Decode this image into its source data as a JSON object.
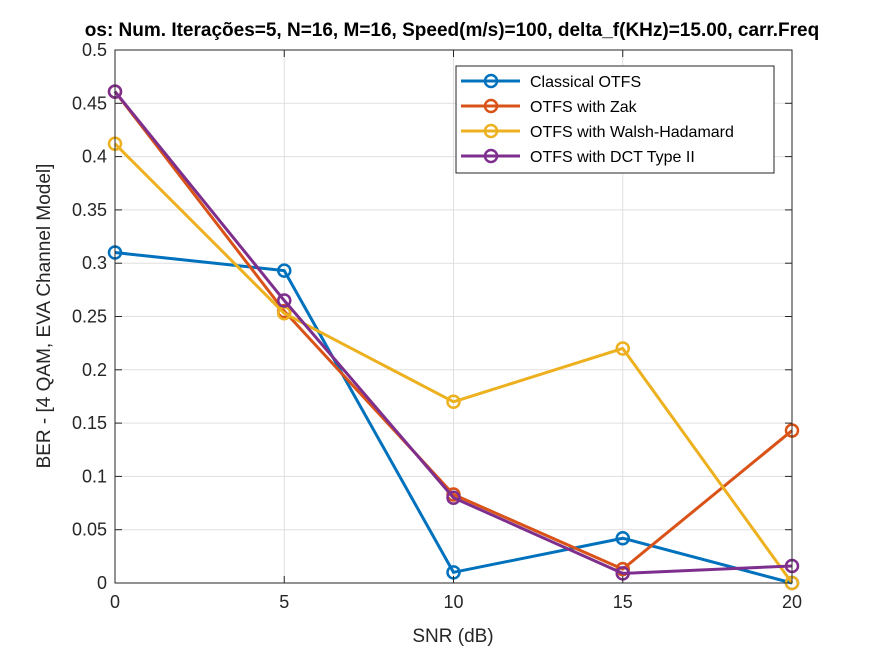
{
  "chart_data": {
    "type": "line",
    "title": "os: Num. Iterações=5, N=16, M=16, Speed(m/s)=100, delta_f(KHz)=15.00, carr.Freq",
    "xlabel": "SNR (dB)",
    "ylabel": "BER - [4 QAM, EVA Channel Model]",
    "x": [
      0,
      5,
      10,
      15,
      20
    ],
    "xlim": [
      0,
      20
    ],
    "ylim": [
      0,
      0.5
    ],
    "xticks": [
      "0",
      "5",
      "10",
      "15",
      "20"
    ],
    "yticks": [
      "0",
      "0.05",
      "0.1",
      "0.15",
      "0.2",
      "0.25",
      "0.3",
      "0.35",
      "0.4",
      "0.45",
      "0.5"
    ],
    "grid": true,
    "legend_position": "top-right",
    "series": [
      {
        "name": "Classical OTFS",
        "color": "#0072BD",
        "values": [
          0.31,
          0.293,
          0.01,
          0.042,
          0.0
        ]
      },
      {
        "name": "OTFS with Zak",
        "color": "#D95319",
        "values": [
          0.461,
          0.255,
          0.083,
          0.013,
          0.143
        ]
      },
      {
        "name": "OTFS with Walsh-Hadamard",
        "color": "#EDB120",
        "values": [
          0.412,
          0.253,
          0.17,
          0.22,
          0.0
        ]
      },
      {
        "name": "OTFS with DCT Type II",
        "color": "#7E2F8E",
        "values": [
          0.461,
          0.265,
          0.08,
          0.009,
          0.016
        ]
      }
    ]
  }
}
